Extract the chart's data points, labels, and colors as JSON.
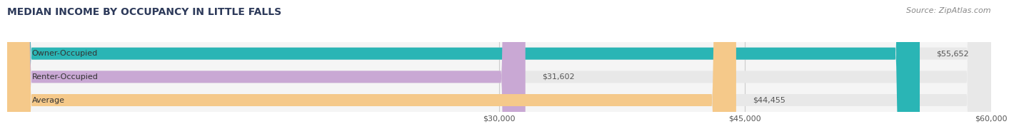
{
  "title": "MEDIAN INCOME BY OCCUPANCY IN LITTLE FALLS",
  "source": "Source: ZipAtlas.com",
  "categories": [
    "Owner-Occupied",
    "Renter-Occupied",
    "Average"
  ],
  "values": [
    55652,
    31602,
    44455
  ],
  "labels": [
    "$55,652",
    "$31,602",
    "$44,455"
  ],
  "bar_colors": [
    "#2ab5b5",
    "#c9a8d4",
    "#f5c98a"
  ],
  "bar_bg_color": "#e8e8e8",
  "xlim_min": 0,
  "xlim_max": 60000,
  "x_ticks": [
    30000,
    45000,
    60000
  ],
  "x_tick_labels": [
    "$30,000",
    "$45,000",
    "$60,000"
  ],
  "title_color": "#2d3a5a",
  "title_fontsize": 10,
  "source_fontsize": 8,
  "label_fontsize": 8,
  "cat_fontsize": 8,
  "tick_fontsize": 8,
  "bar_height": 0.52,
  "background_color": "#f5f5f5"
}
